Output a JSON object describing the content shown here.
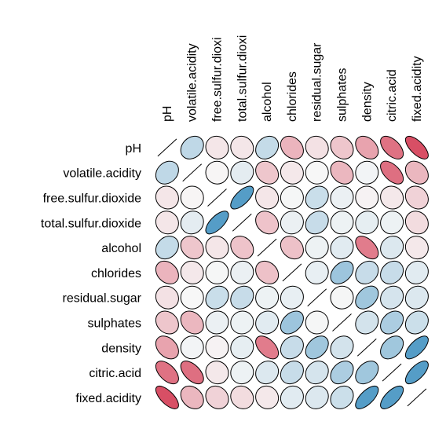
{
  "chart_data": {
    "type": "heatmap",
    "subtype": "correlation ellipse matrix (lower and upper triangles, diagonal drawn as lines)",
    "variables": [
      "pH",
      "volatile.acidity",
      "free.sulfur.dioxide",
      "total.sulfur.dioxide",
      "alcohol",
      "chlorides",
      "residual.sugar",
      "sulphates",
      "density",
      "citric.acid",
      "fixed.acidity"
    ],
    "column_labels": [
      "pH",
      "volatile.acidity",
      "free.sulfur.dioxi",
      "total.sulfur.dioxi",
      "alcohol",
      "chlorides",
      "residual.sugar",
      "sulphates",
      "density",
      "citric.acid",
      "fixed.acidity"
    ],
    "matrix": [
      [
        1.0,
        0.23,
        -0.07,
        -0.07,
        0.21,
        -0.27,
        -0.09,
        -0.2,
        -0.34,
        -0.54,
        -0.68
      ],
      [
        0.23,
        1.0,
        -0.01,
        0.08,
        -0.2,
        -0.06,
        0.0,
        -0.26,
        0.02,
        -0.55,
        -0.26
      ],
      [
        -0.07,
        -0.01,
        1.0,
        0.67,
        -0.07,
        0.01,
        0.19,
        0.05,
        -0.02,
        -0.06,
        -0.15
      ],
      [
        -0.07,
        0.08,
        0.67,
        1.0,
        -0.21,
        0.05,
        0.2,
        0.04,
        0.07,
        0.04,
        -0.11
      ],
      [
        0.21,
        -0.2,
        -0.07,
        -0.21,
        1.0,
        -0.22,
        0.04,
        0.09,
        -0.5,
        0.11,
        -0.06
      ],
      [
        -0.27,
        -0.06,
        0.01,
        0.05,
        -0.22,
        1.0,
        0.06,
        0.37,
        0.2,
        0.2,
        0.09
      ],
      [
        -0.09,
        0.0,
        0.19,
        0.2,
        0.04,
        0.06,
        1.0,
        0.01,
        0.36,
        0.14,
        0.11
      ],
      [
        -0.2,
        -0.26,
        0.05,
        0.04,
        0.09,
        0.37,
        0.01,
        1.0,
        0.15,
        0.31,
        0.18
      ],
      [
        -0.34,
        0.02,
        -0.02,
        0.07,
        -0.5,
        0.2,
        0.36,
        0.15,
        1.0,
        0.36,
        0.67
      ],
      [
        -0.54,
        -0.55,
        -0.06,
        0.04,
        0.11,
        0.2,
        0.14,
        0.31,
        0.36,
        1.0,
        0.67
      ],
      [
        -0.68,
        -0.26,
        -0.15,
        -0.11,
        -0.06,
        0.09,
        0.11,
        0.18,
        0.67,
        0.67,
        1.0
      ]
    ],
    "color_scale": {
      "negative": "#CA0020",
      "zero": "#F7F7F7",
      "positive": "#0571B0"
    },
    "diagonal": "line"
  }
}
